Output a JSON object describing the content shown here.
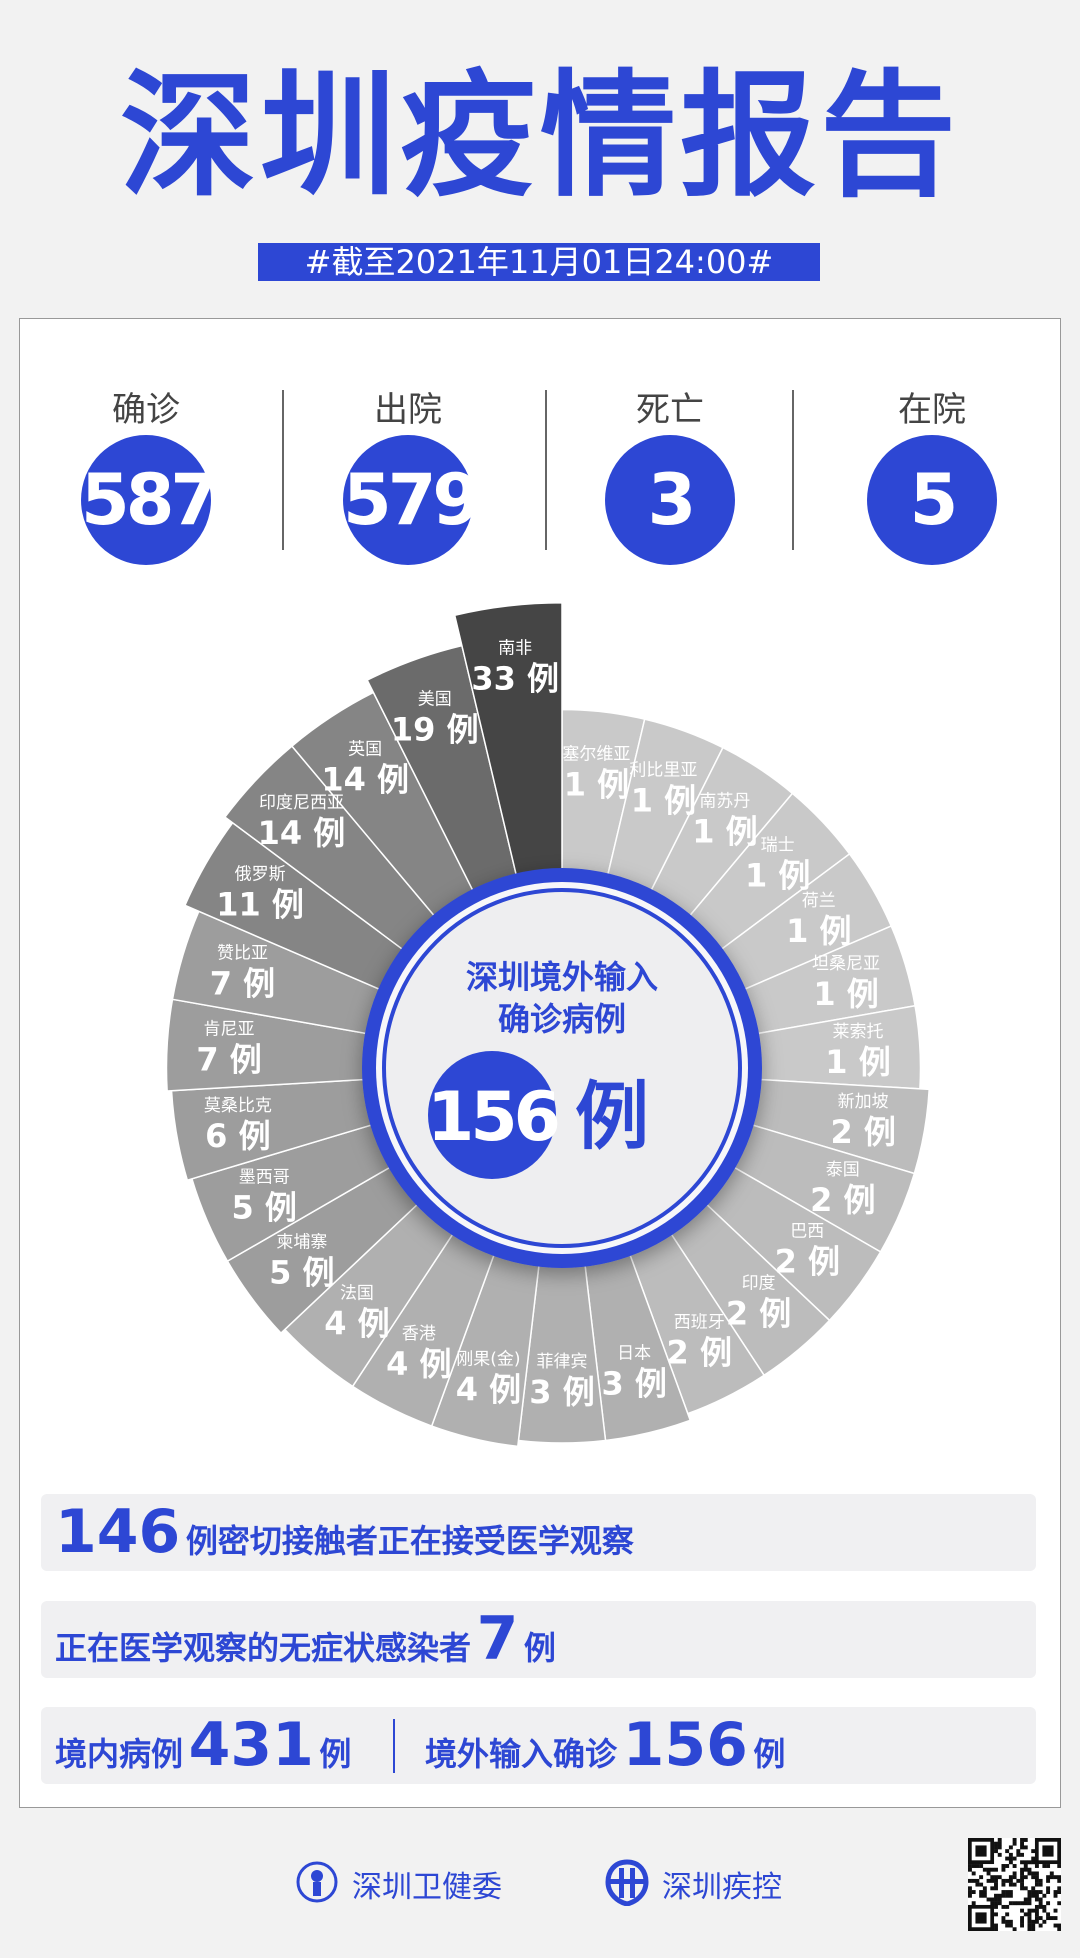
{
  "header": {
    "title": "深圳疫情报告",
    "date": "#截至2021年11月01日24:00#"
  },
  "stats": [
    {
      "label": "确诊",
      "value": "587"
    },
    {
      "label": "出院",
      "value": "579"
    },
    {
      "label": "死亡",
      "value": "3"
    },
    {
      "label": "在院",
      "value": "5"
    }
  ],
  "colors": {
    "accent": "#2d47d4",
    "background": "#f2f2f2"
  },
  "chart_data": {
    "type": "polar-area",
    "title": "深圳境外输入确诊病例",
    "center": {
      "line1": "深圳境外输入",
      "line2": "确诊病例",
      "total": "156",
      "unit": "例"
    },
    "unit": "例",
    "categories": [
      "塞尔维亚",
      "利比里亚",
      "南苏丹",
      "瑞士",
      "荷兰",
      "坦桑尼亚",
      "莱索托",
      "新加坡",
      "泰国",
      "巴西",
      "印度",
      "西班牙",
      "日本",
      "菲律宾",
      "刚果(金)",
      "香港",
      "法国",
      "柬埔寨",
      "墨西哥",
      "莫桑比克",
      "肯尼亚",
      "赞比亚",
      "俄罗斯",
      "印度尼西亚",
      "英国",
      "美国",
      "南非"
    ],
    "values": [
      1,
      1,
      1,
      1,
      1,
      1,
      1,
      2,
      2,
      2,
      2,
      2,
      3,
      3,
      4,
      4,
      4,
      5,
      5,
      6,
      7,
      7,
      11,
      14,
      14,
      19,
      33
    ]
  },
  "summary": {
    "contacts": {
      "value": "146",
      "text": "例密切接触者正在接受医学观察"
    },
    "asymptomatic": {
      "text": "正在医学观察的无症状感染者",
      "value": "7",
      "unit": "例"
    },
    "local": {
      "text": "境内病例",
      "value": "431",
      "unit": "例"
    },
    "imported": {
      "text": "境外输入确诊",
      "value": "156",
      "unit": "例"
    }
  },
  "footer": {
    "org1": "深圳卫健委",
    "org2": "深圳疾控",
    "qr_icon": "qr-code"
  }
}
